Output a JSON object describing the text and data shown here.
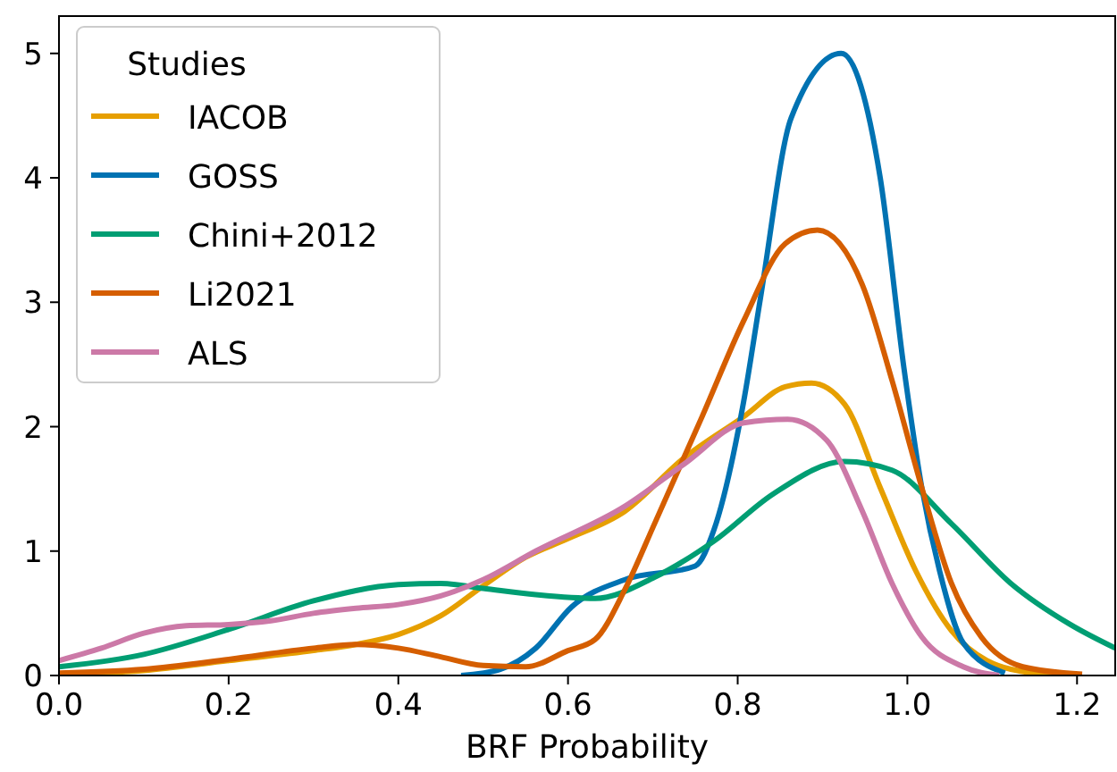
{
  "chart_data": {
    "type": "line",
    "xlabel": "BRF Probability",
    "legend_title": "Studies",
    "legend": "top left",
    "grid": false,
    "marker": "none",
    "line_style": "solid",
    "xlim": [
      0,
      1.245
    ],
    "ylim": [
      0,
      5.3
    ],
    "xticks": [
      {
        "value": 0,
        "label": "0.0"
      },
      {
        "value": 0.2,
        "label": "0.2"
      },
      {
        "value": 0.4,
        "label": "0.4"
      },
      {
        "value": 0.6,
        "label": "0.6"
      },
      {
        "value": 0.8,
        "label": "0.8"
      },
      {
        "value": 1,
        "label": "1.0"
      },
      {
        "value": 1.2,
        "label": "1.2"
      }
    ],
    "yticks": [
      0,
      1,
      2,
      3,
      4,
      5
    ],
    "series": [
      {
        "name": "IACOB",
        "color": "#e69f00",
        "x": [
          0,
          0.1,
          0.2,
          0.3,
          0.35,
          0.4,
          0.45,
          0.5,
          0.55,
          0.6,
          0.667,
          0.737,
          0.807,
          0.856,
          0.887,
          0.926,
          0.968,
          1.01,
          1.052,
          1.094,
          1.15,
          1.2
        ],
        "values": [
          0.01,
          0.04,
          0.12,
          0.2,
          0.25,
          0.33,
          0.48,
          0.72,
          0.95,
          1.1,
          1.32,
          1.75,
          2.08,
          2.32,
          2.35,
          2.18,
          1.51,
          0.84,
          0.36,
          0.12,
          0.02,
          0
        ]
      },
      {
        "name": "GOSS",
        "color": "#0072b2",
        "x": [
          0.474,
          0.52,
          0.562,
          0.604,
          0.667,
          0.75,
          0.772,
          0.807,
          0.827,
          0.863,
          0.922,
          0.968,
          0.996,
          1.017,
          1.038,
          1.066,
          1.115
        ],
        "values": [
          0,
          0.05,
          0.22,
          0.55,
          0.77,
          0.88,
          1.17,
          2.2,
          3.04,
          4.48,
          5.0,
          4.0,
          2.47,
          1.51,
          0.84,
          0.26,
          0.02
        ]
      },
      {
        "name": "Chini+2012",
        "color": "#009e73",
        "x": [
          0,
          0.1,
          0.2,
          0.3,
          0.4,
          0.45,
          0.5,
          0.562,
          0.632,
          0.702,
          0.772,
          0.842,
          0.926,
          0.982,
          1.052,
          1.122,
          1.192,
          1.245
        ],
        "values": [
          0.07,
          0.17,
          0.37,
          0.6,
          0.73,
          0.74,
          0.7,
          0.65,
          0.62,
          0.79,
          1.08,
          1.46,
          1.72,
          1.65,
          1.22,
          0.74,
          0.41,
          0.22
        ]
      },
      {
        "name": "Li2021",
        "color": "#d55e00",
        "x": [
          0,
          0.1,
          0.2,
          0.3,
          0.35,
          0.4,
          0.45,
          0.5,
          0.55,
          0.6,
          0.632,
          0.667,
          0.702,
          0.758,
          0.807,
          0.856,
          0.894,
          0.947,
          0.982,
          1.017,
          1.052,
          1.087,
          1.136,
          1.206
        ],
        "values": [
          0.02,
          0.05,
          0.13,
          0.22,
          0.25,
          0.22,
          0.15,
          0.08,
          0.07,
          0.2,
          0.29,
          0.69,
          1.22,
          2.08,
          2.85,
          3.47,
          3.58,
          3.14,
          2.37,
          1.51,
          0.74,
          0.31,
          0.07,
          0.01
        ]
      },
      {
        "name": "ALS",
        "color": "#cc79a7",
        "x": [
          0,
          0.05,
          0.1,
          0.15,
          0.2,
          0.25,
          0.3,
          0.35,
          0.4,
          0.45,
          0.5,
          0.562,
          0.667,
          0.737,
          0.807,
          0.859,
          0.905,
          0.947,
          0.982,
          1.017,
          1.066,
          1.108
        ],
        "values": [
          0.12,
          0.22,
          0.34,
          0.4,
          0.41,
          0.44,
          0.5,
          0.54,
          0.57,
          0.64,
          0.77,
          1.0,
          1.36,
          1.7,
          2.03,
          2.06,
          1.89,
          1.32,
          0.74,
          0.31,
          0.07,
          0
        ]
      }
    ]
  }
}
